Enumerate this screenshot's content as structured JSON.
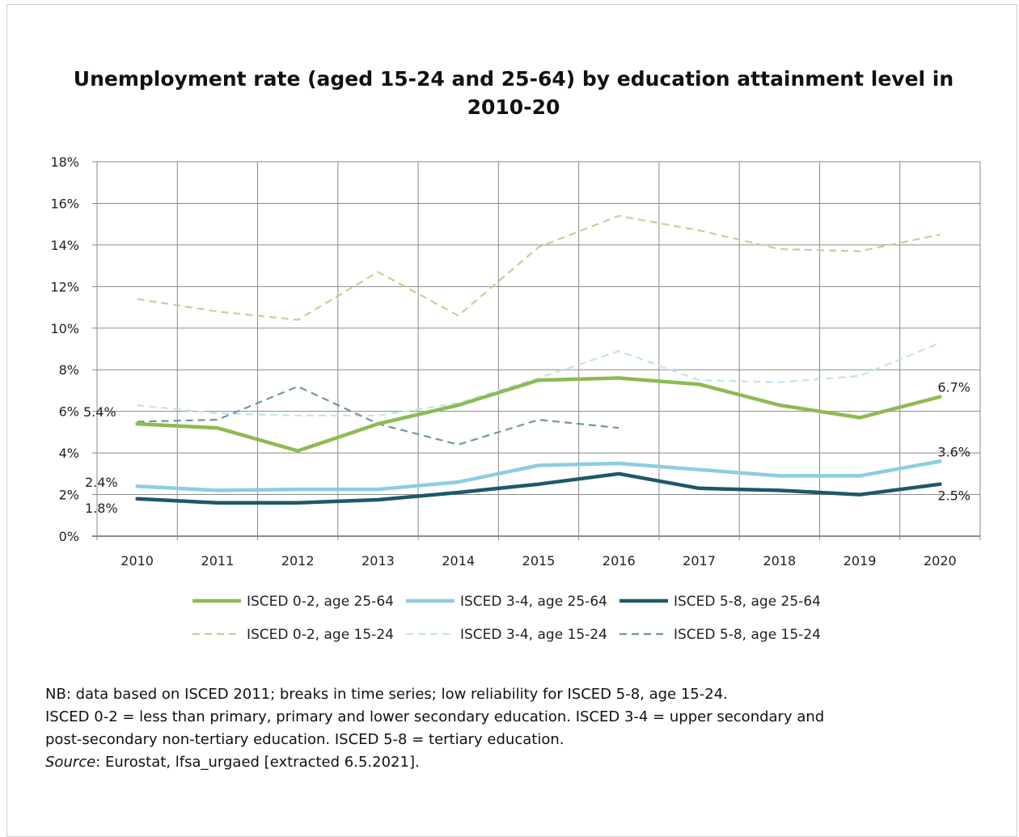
{
  "chart_data": {
    "type": "line",
    "title": "Unemployment rate (aged 15-24 and 25-64) by education attainment level in 2010-20",
    "x": [
      "2010",
      "2011",
      "2012",
      "2013",
      "2014",
      "2015",
      "2016",
      "2017",
      "2018",
      "2019",
      "2020"
    ],
    "y_ticks": [
      "0%",
      "2%",
      "4%",
      "6%",
      "8%",
      "10%",
      "12%",
      "14%",
      "16%",
      "18%"
    ],
    "ylim": [
      0,
      18
    ],
    "grid": true,
    "legend_position": "bottom",
    "series": [
      {
        "name": "ISCED 0-2, age 25-64",
        "style": "solid",
        "color": "#8dbb53",
        "values": [
          5.4,
          5.2,
          4.1,
          5.4,
          6.3,
          7.5,
          7.6,
          7.3,
          6.3,
          5.7,
          6.7
        ]
      },
      {
        "name": "ISCED 3-4, age 25-64",
        "style": "solid",
        "color": "#8ccde2",
        "values": [
          2.4,
          2.2,
          2.25,
          2.25,
          2.6,
          3.4,
          3.5,
          3.2,
          2.9,
          2.9,
          3.6
        ]
      },
      {
        "name": "ISCED 5-8, age 25-64",
        "style": "solid",
        "color": "#1f5868",
        "values": [
          1.8,
          1.6,
          1.6,
          1.75,
          2.1,
          2.5,
          3.0,
          2.3,
          2.2,
          2.0,
          2.5
        ]
      },
      {
        "name": "ISCED 0-2, age 15-24",
        "style": "dashed",
        "color": "#bdd49a",
        "values": [
          11.4,
          10.8,
          10.4,
          12.7,
          10.6,
          13.9,
          15.4,
          14.7,
          13.8,
          13.7,
          14.5
        ]
      },
      {
        "name": "ISCED 3-4, age 15-24",
        "style": "dashed",
        "color": "#c3e3ef",
        "values": [
          6.3,
          5.9,
          5.8,
          5.8,
          6.4,
          7.6,
          8.9,
          7.5,
          7.4,
          7.7,
          9.3
        ]
      },
      {
        "name": "ISCED 5-8, age 15-24",
        "style": "dashed",
        "color": "#6f97a4",
        "values": [
          5.5,
          5.6,
          7.2,
          5.4,
          4.4,
          5.6,
          5.2,
          null,
          null,
          null,
          null
        ]
      }
    ],
    "data_labels": [
      {
        "series": 0,
        "index": 0,
        "text": "5.4%",
        "side": "left"
      },
      {
        "series": 1,
        "index": 0,
        "text": "2.4%",
        "side": "left"
      },
      {
        "series": 2,
        "index": 0,
        "text": "1.8%",
        "side": "left"
      },
      {
        "series": 0,
        "index": 10,
        "text": "6.7%",
        "side": "right"
      },
      {
        "series": 1,
        "index": 10,
        "text": "3.6%",
        "side": "right"
      },
      {
        "series": 2,
        "index": 10,
        "text": "2.5%",
        "side": "right"
      }
    ]
  },
  "notes": {
    "nb": "NB: data based on ISCED 2011; breaks in time series; low reliability for ISCED 5-8, age 15-24.",
    "def_line1": "ISCED 0-2 = less than primary, primary and lower secondary education. ISCED 3-4 = upper secondary and",
    "def_line2": "post-secondary non-tertiary education. ISCED 5-8 = tertiary education.",
    "source_label": "Source",
    "source_text": ": Eurostat, lfsa_urgaed [extracted 6.5.2021]."
  }
}
